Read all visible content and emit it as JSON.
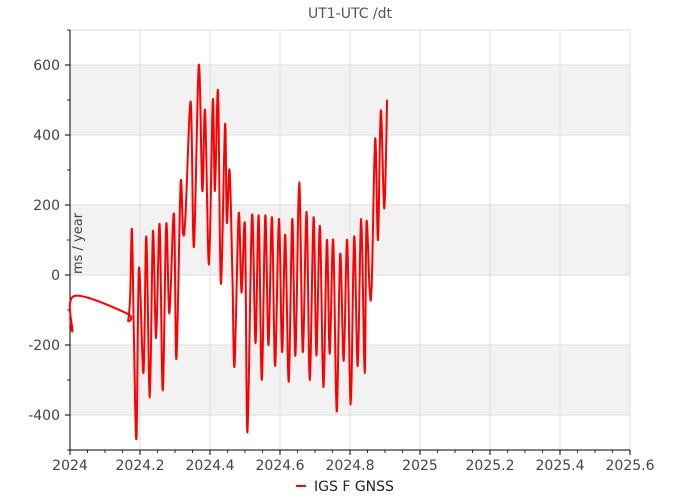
{
  "chart_data": {
    "type": "line",
    "title": "UT1-UTC /dt",
    "xlabel": "",
    "ylabel": "ms / year",
    "xlim": [
      2024,
      2025.6
    ],
    "ylim": [
      -500,
      700
    ],
    "x_ticks": [
      2024,
      2024.2,
      2024.4,
      2024.6,
      2024.8,
      2025,
      2025.2,
      2025.4,
      2025.6
    ],
    "x_tick_labels": [
      "2024",
      "2024.2",
      "2024.4",
      "2024.6",
      "2024.8",
      "2025",
      "2025.2",
      "2025.4",
      "2025.6"
    ],
    "y_ticks": [
      -400,
      -200,
      0,
      200,
      400,
      600
    ],
    "y_tick_labels": [
      "-400",
      "-200",
      "0",
      "200",
      "400",
      "600"
    ],
    "grid": true,
    "legend": {
      "placement": "bottom-center"
    },
    "colors": {
      "series": "#ff0000",
      "band": "#f2f2f2",
      "grid": "#dddddd"
    },
    "series": [
      {
        "name": "IGS F GNSS",
        "points": [
          [
            2024.0,
            -120
          ],
          [
            2024.007,
            -160
          ],
          [
            2024.012,
            -60
          ],
          [
            2024.163,
            -110
          ],
          [
            2024.166,
            -130
          ],
          [
            2024.172,
            -60
          ],
          [
            2024.177,
            130
          ],
          [
            2024.183,
            -200
          ],
          [
            2024.19,
            -465
          ],
          [
            2024.197,
            20
          ],
          [
            2024.21,
            -280
          ],
          [
            2024.218,
            110
          ],
          [
            2024.228,
            -350
          ],
          [
            2024.237,
            125
          ],
          [
            2024.246,
            -180
          ],
          [
            2024.256,
            145
          ],
          [
            2024.265,
            -330
          ],
          [
            2024.275,
            145
          ],
          [
            2024.284,
            -110
          ],
          [
            2024.297,
            175
          ],
          [
            2024.304,
            -240
          ],
          [
            2024.316,
            260
          ],
          [
            2024.323,
            120
          ],
          [
            2024.33,
            170
          ],
          [
            2024.345,
            495
          ],
          [
            2024.354,
            80
          ],
          [
            2024.368,
            600
          ],
          [
            2024.378,
            240
          ],
          [
            2024.386,
            470
          ],
          [
            2024.397,
            30
          ],
          [
            2024.408,
            500
          ],
          [
            2024.414,
            240
          ],
          [
            2024.423,
            525
          ],
          [
            2024.431,
            -25
          ],
          [
            2024.443,
            430
          ],
          [
            2024.448,
            150
          ],
          [
            2024.456,
            300
          ],
          [
            2024.464,
            0
          ],
          [
            2024.47,
            -260
          ],
          [
            2024.482,
            175
          ],
          [
            2024.49,
            -50
          ],
          [
            2024.5,
            140
          ],
          [
            2024.507,
            -450
          ],
          [
            2024.52,
            170
          ],
          [
            2024.53,
            -195
          ],
          [
            2024.539,
            170
          ],
          [
            2024.548,
            -300
          ],
          [
            2024.558,
            170
          ],
          [
            2024.567,
            -200
          ],
          [
            2024.577,
            165
          ],
          [
            2024.586,
            -260
          ],
          [
            2024.597,
            160
          ],
          [
            2024.606,
            -220
          ],
          [
            2024.615,
            115
          ],
          [
            2024.625,
            -305
          ],
          [
            2024.635,
            160
          ],
          [
            2024.644,
            -230
          ],
          [
            2024.655,
            265
          ],
          [
            2024.665,
            -220
          ],
          [
            2024.676,
            180
          ],
          [
            2024.685,
            -300
          ],
          [
            2024.696,
            165
          ],
          [
            2024.704,
            -230
          ],
          [
            2024.714,
            140
          ],
          [
            2024.724,
            -320
          ],
          [
            2024.734,
            100
          ],
          [
            2024.742,
            -225
          ],
          [
            2024.752,
            100
          ],
          [
            2024.762,
            -390
          ],
          [
            2024.772,
            60
          ],
          [
            2024.782,
            -245
          ],
          [
            2024.792,
            100
          ],
          [
            2024.802,
            -370
          ],
          [
            2024.812,
            110
          ],
          [
            2024.822,
            -260
          ],
          [
            2024.832,
            160
          ],
          [
            2024.842,
            -280
          ],
          [
            2024.847,
            150
          ],
          [
            2024.856,
            -40
          ],
          [
            2024.862,
            -30
          ],
          [
            2024.872,
            390
          ],
          [
            2024.88,
            100
          ],
          [
            2024.888,
            470
          ],
          [
            2024.898,
            190
          ],
          [
            2024.906,
            500
          ]
        ]
      }
    ]
  }
}
